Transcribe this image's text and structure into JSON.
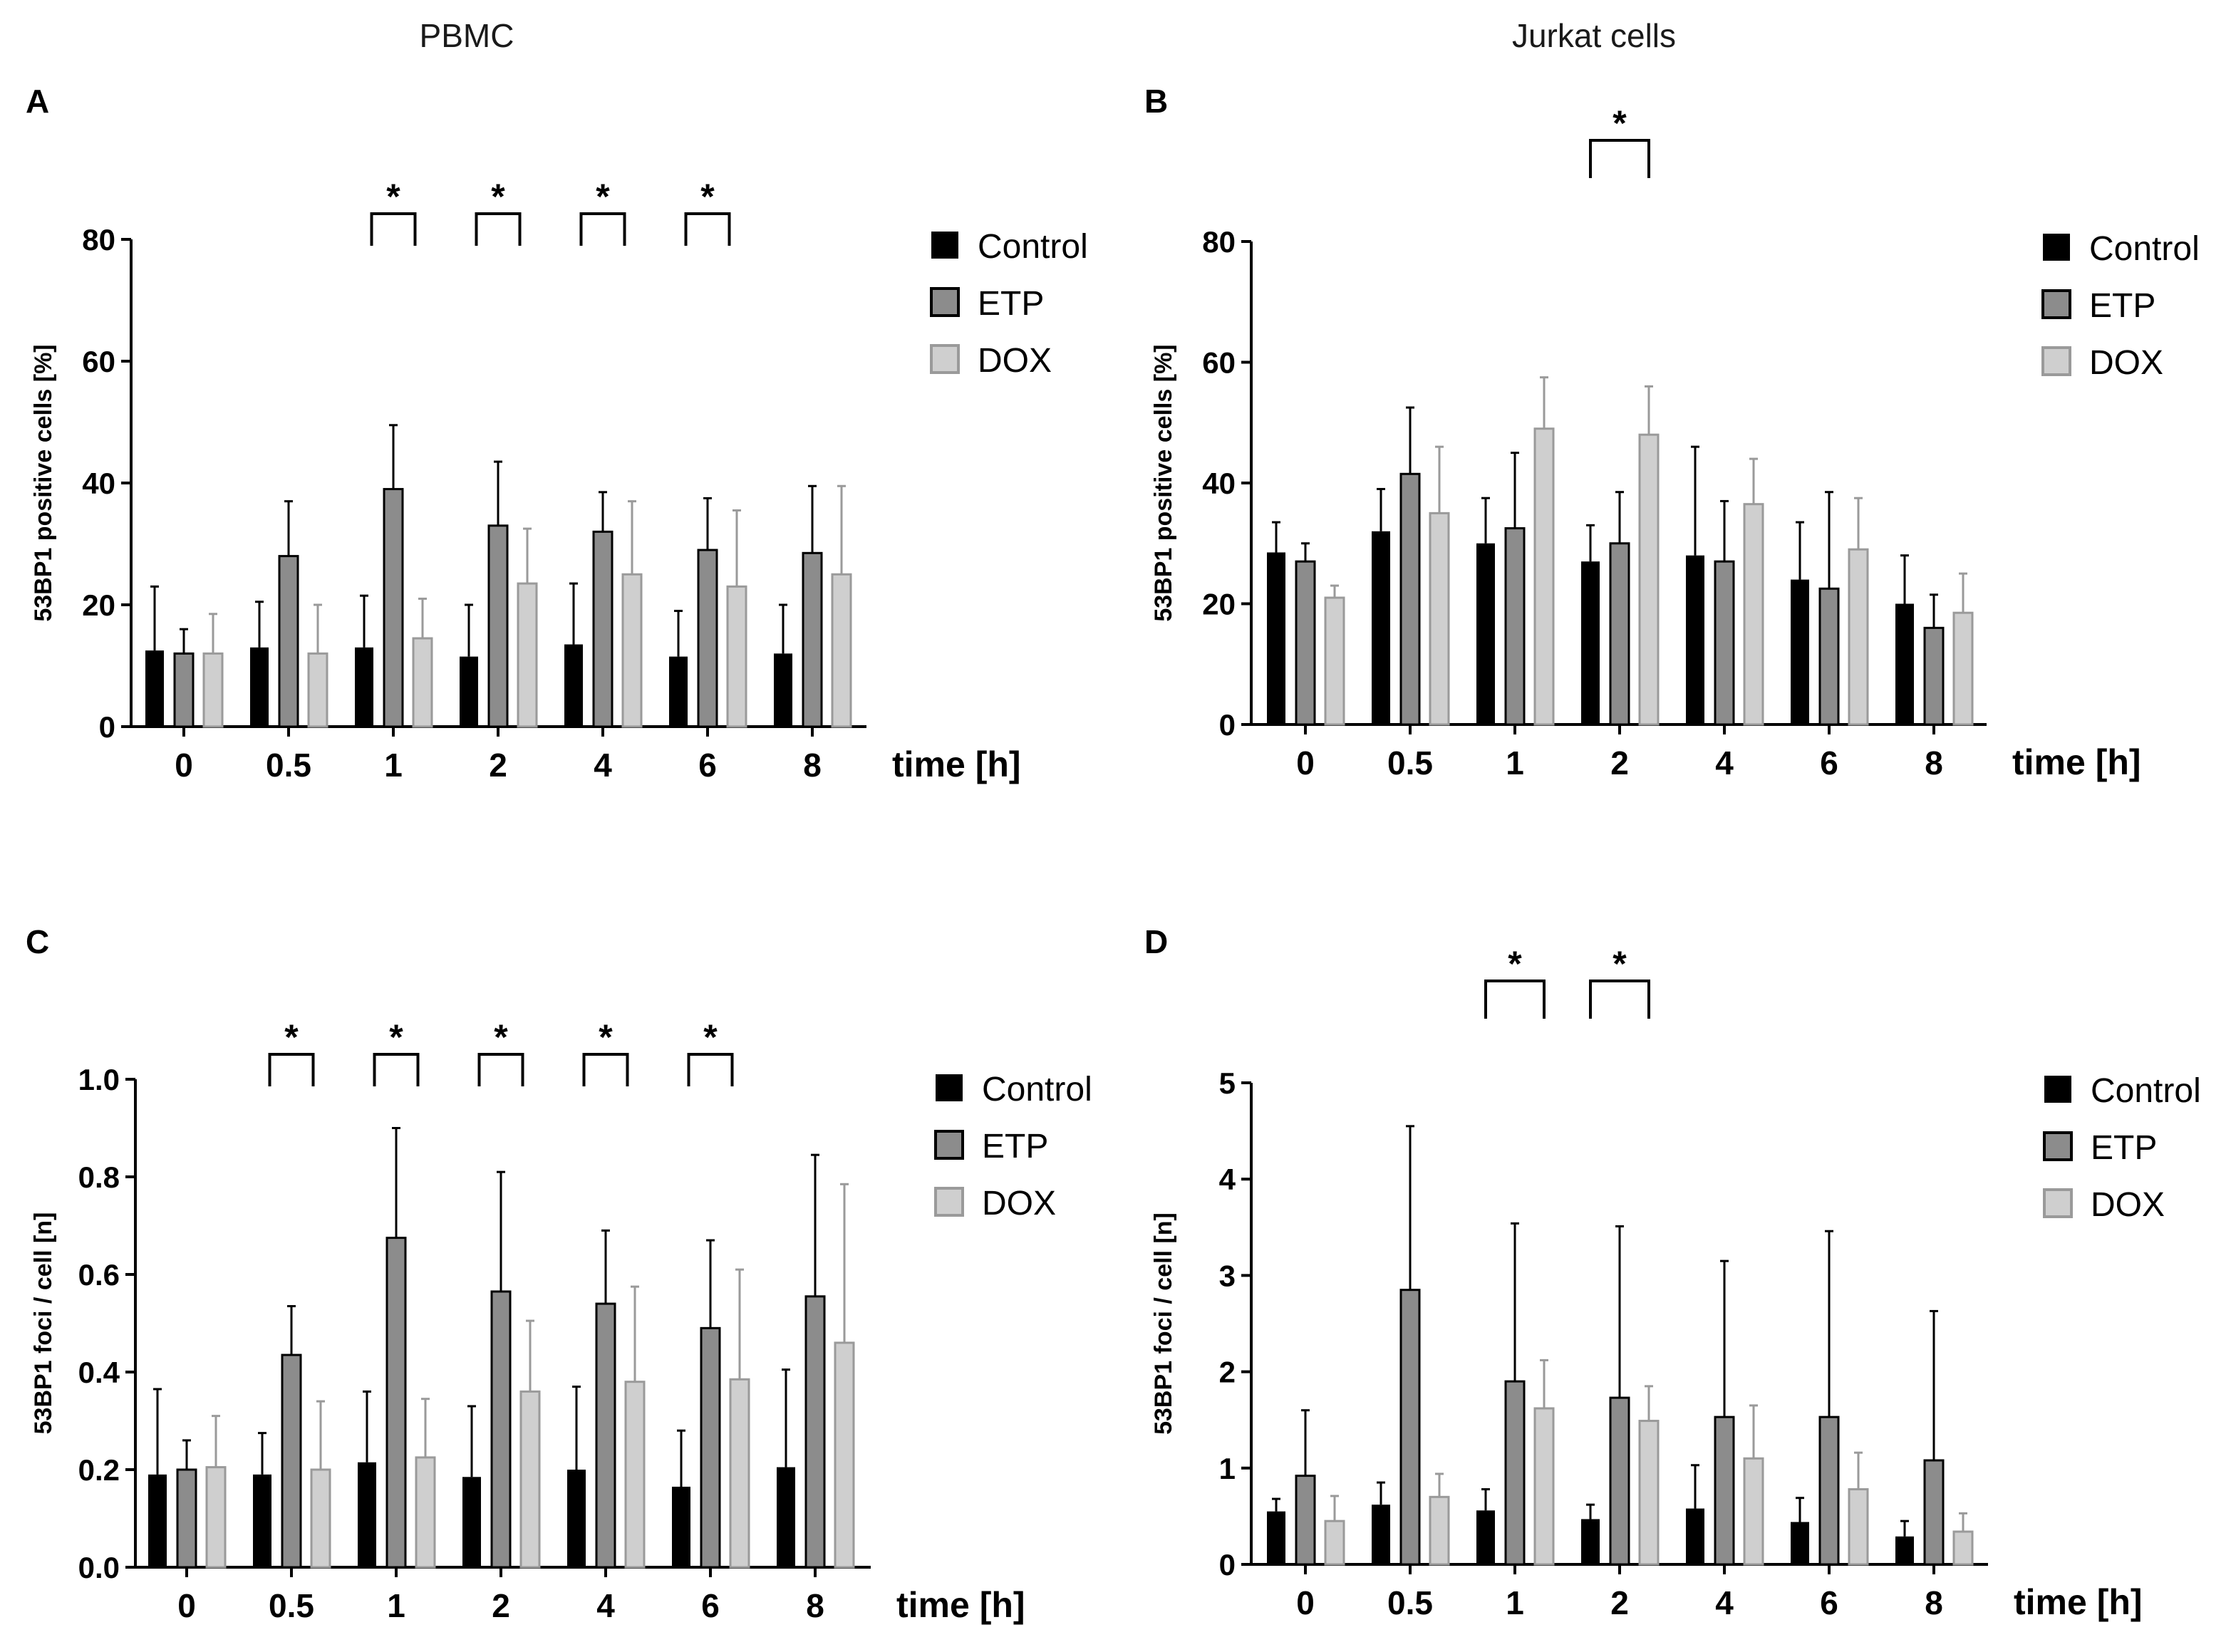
{
  "figure": {
    "column_titles": [
      "PBMC",
      "Jurkat cells"
    ]
  },
  "legend": {
    "entries": [
      "Control",
      "ETP",
      "DOX"
    ]
  },
  "colors": {
    "Control": "#000000",
    "ETP": "#8c8c8c",
    "DOX": "#cfcfcf",
    "ETP_stroke": "#000000",
    "DOX_stroke": "#9a9a9a"
  },
  "chart_data": [
    {
      "type": "bar",
      "panel": "A",
      "column": "PBMC",
      "categories": [
        "0",
        "0.5",
        "1",
        "2",
        "4",
        "6",
        "8"
      ],
      "xlabel": "time [h]",
      "ylabel": "53BP1 positive cells [%]",
      "ylim": [
        0,
        80
      ],
      "yticks": [
        "0",
        "20",
        "40",
        "60",
        "80"
      ],
      "series": [
        {
          "name": "Control",
          "values": [
            12.5,
            13,
            13,
            11.5,
            13.5,
            11.5,
            12
          ],
          "errors": [
            10.5,
            7.5,
            8.5,
            8.5,
            10,
            7.5,
            8
          ]
        },
        {
          "name": "ETP",
          "values": [
            12,
            28,
            39,
            33,
            32,
            29,
            28.5
          ],
          "errors": [
            4,
            9,
            10.5,
            10.5,
            6.5,
            8.5,
            11
          ]
        },
        {
          "name": "DOX",
          "values": [
            12,
            12,
            14.5,
            23.5,
            25,
            23,
            25
          ],
          "errors": [
            6.5,
            8,
            6.5,
            9,
            12,
            12.5,
            14.5
          ]
        }
      ],
      "significance": [
        {
          "category": "1",
          "label": "*"
        },
        {
          "category": "2",
          "label": "*"
        },
        {
          "category": "4",
          "label": "*"
        },
        {
          "category": "6",
          "label": "*"
        }
      ]
    },
    {
      "type": "bar",
      "panel": "B",
      "column": "Jurkat cells",
      "categories": [
        "0",
        "0.5",
        "1",
        "2",
        "4",
        "6",
        "8"
      ],
      "xlabel": "time [h]",
      "ylabel": "53BP1 positive cells [%]",
      "ylim": [
        0,
        80
      ],
      "yticks": [
        "0",
        "20",
        "40",
        "60",
        "80"
      ],
      "series": [
        {
          "name": "Control",
          "values": [
            28.5,
            32,
            30,
            27,
            28,
            24,
            20
          ],
          "errors": [
            5,
            7,
            7.5,
            6,
            18,
            9.5,
            8
          ]
        },
        {
          "name": "ETP",
          "values": [
            27,
            41.5,
            32.5,
            30,
            27,
            22.5,
            16
          ],
          "errors": [
            3,
            11,
            12.5,
            8.5,
            10,
            16,
            5.5
          ]
        },
        {
          "name": "DOX",
          "values": [
            21,
            35,
            49,
            48,
            36.5,
            29,
            18.5
          ],
          "errors": [
            2,
            11,
            8.5,
            8,
            7.5,
            8.5,
            6.5
          ]
        }
      ],
      "significance": [
        {
          "category": "2",
          "label": "*"
        }
      ]
    },
    {
      "type": "bar",
      "panel": "C",
      "column": "PBMC",
      "categories": [
        "0",
        "0.5",
        "1",
        "2",
        "4",
        "6",
        "8"
      ],
      "xlabel": "time [h]",
      "ylabel": "53BP1 foci / cell [n]",
      "ylim": [
        0,
        1.0
      ],
      "yticks": [
        "0.0",
        "0.2",
        "0.4",
        "0.6",
        "0.8",
        "1.0"
      ],
      "series": [
        {
          "name": "Control",
          "values": [
            0.19,
            0.19,
            0.215,
            0.185,
            0.2,
            0.165,
            0.205
          ],
          "errors": [
            0.175,
            0.085,
            0.145,
            0.145,
            0.17,
            0.115,
            0.2
          ]
        },
        {
          "name": "ETP",
          "values": [
            0.2,
            0.435,
            0.675,
            0.565,
            0.54,
            0.49,
            0.555
          ],
          "errors": [
            0.06,
            0.1,
            0.225,
            0.245,
            0.15,
            0.18,
            0.29
          ]
        },
        {
          "name": "DOX",
          "values": [
            0.205,
            0.2,
            0.225,
            0.36,
            0.38,
            0.385,
            0.46
          ],
          "errors": [
            0.105,
            0.14,
            0.12,
            0.145,
            0.195,
            0.225,
            0.325
          ]
        }
      ],
      "significance": [
        {
          "category": "0.5",
          "label": "*"
        },
        {
          "category": "1",
          "label": "*"
        },
        {
          "category": "2",
          "label": "*"
        },
        {
          "category": "4",
          "label": "*"
        },
        {
          "category": "6",
          "label": "*"
        }
      ]
    },
    {
      "type": "bar",
      "panel": "D",
      "column": "Jurkat cells",
      "categories": [
        "0",
        "0.5",
        "1",
        "2",
        "4",
        "6",
        "8"
      ],
      "xlabel": "time [h]",
      "ylabel": "53BP1 foci / cell [n]",
      "ylim": [
        0,
        5
      ],
      "yticks": [
        "0",
        "1",
        "2",
        "3",
        "4",
        "5"
      ],
      "series": [
        {
          "name": "Control",
          "values": [
            0.55,
            0.62,
            0.56,
            0.47,
            0.58,
            0.44,
            0.29
          ],
          "errors": [
            0.13,
            0.23,
            0.22,
            0.15,
            0.45,
            0.25,
            0.16
          ]
        },
        {
          "name": "ETP",
          "values": [
            0.92,
            2.85,
            1.9,
            1.73,
            1.53,
            1.53,
            1.08
          ],
          "errors": [
            0.68,
            1.7,
            1.64,
            1.78,
            1.62,
            1.93,
            1.55
          ]
        },
        {
          "name": "DOX",
          "values": [
            0.45,
            0.7,
            1.62,
            1.49,
            1.1,
            0.78,
            0.34
          ],
          "errors": [
            0.26,
            0.24,
            0.5,
            0.36,
            0.55,
            0.38,
            0.19
          ]
        }
      ],
      "significance": [
        {
          "category": "1",
          "label": "*"
        },
        {
          "category": "2",
          "label": "*"
        }
      ]
    }
  ]
}
